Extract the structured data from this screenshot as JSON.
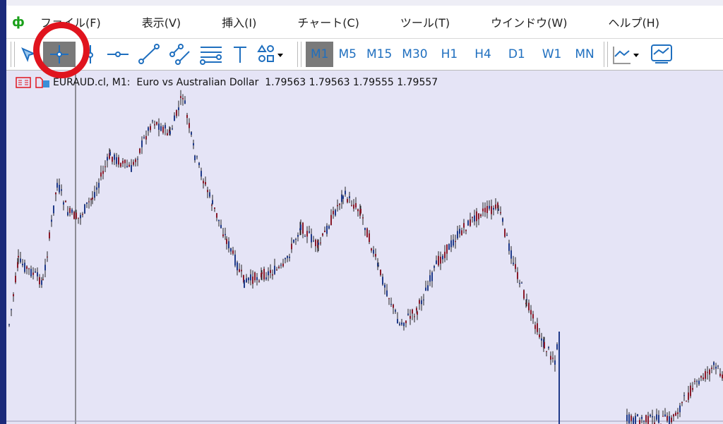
{
  "menu": [
    "ファイル(F)",
    "表示(V)",
    "挿入(I)",
    "チャート(C)",
    "ツール(T)",
    "ウインドウ(W)",
    "ヘルプ(H)"
  ],
  "toolbar": {
    "tools": [
      "cursor-icon",
      "crosshair-icon",
      "vertical-line-icon",
      "horizontal-line-icon",
      "trendline-icon",
      "channel-icon",
      "fibonacci-icon",
      "text-icon",
      "shapes-icon"
    ],
    "selected_tool": "crosshair-icon",
    "timeframes": [
      "M1",
      "M5",
      "M15",
      "M30",
      "H1",
      "H4",
      "D1",
      "W1",
      "MN"
    ],
    "selected_timeframe": "M1"
  },
  "chart": {
    "symbol": "EURAUD.cl, M1:",
    "description": "Euro vs Australian Dollar",
    "ohlc": "1.79563 1.79563 1.79555 1.79557",
    "background": "#e5e4f6",
    "bull_color": "#8b1a2a",
    "bear_color": "#1f3a8a"
  },
  "annotation": {
    "color": "#e0141e"
  }
}
